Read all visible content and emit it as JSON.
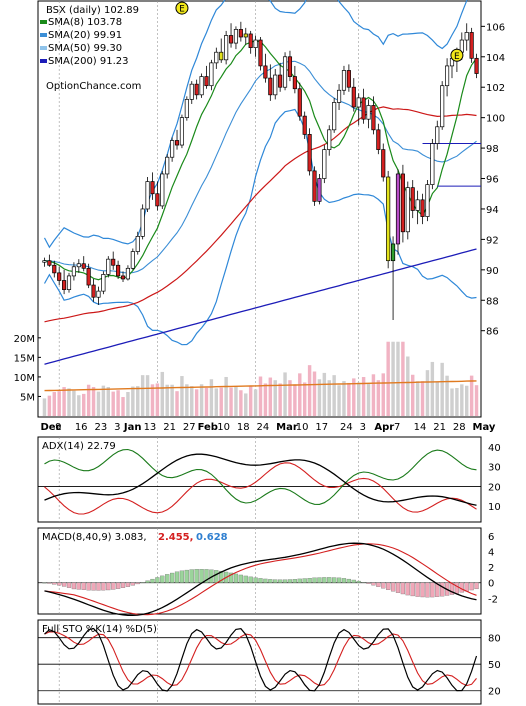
{
  "chart_data": {
    "type": "line",
    "symbol_label": "BSX (daily) 102.89",
    "legend": [
      {
        "label": "SMA(8) 103.78",
        "color": "#1a8a1a"
      },
      {
        "label": "SMA(20) 99.91",
        "color": "#3b8ed6"
      },
      {
        "label": "SMA(50) 99.30",
        "color": "#8fc3ea"
      },
      {
        "label": "SMA(200) 91.23",
        "color": "#1c1cb8"
      }
    ],
    "source": "OptionChance.com",
    "price_ticks": [
      "106",
      "104",
      "102",
      "100",
      "98",
      "96",
      "94",
      "92",
      "90",
      "88",
      "86"
    ],
    "price_range": [
      84.6,
      107.6
    ],
    "volume_ticks": [
      "20M",
      "15M",
      "10M",
      "5M"
    ],
    "volume_range": [
      0,
      22
    ],
    "x_labels": [
      "Dec",
      "9",
      "16",
      "23",
      "3",
      "Jan",
      "13",
      "21",
      "27",
      "Feb",
      "10",
      "18",
      "24",
      "Mar",
      "10",
      "17",
      "24",
      "3",
      "Apr",
      "7",
      "14",
      "21",
      "28",
      "May"
    ],
    "earnings_marker": "E",
    "colors": {
      "up": "#ffffff",
      "down": "#d42020",
      "sma8": "#1a8a1a",
      "sma20": "#3b8ed6",
      "sma50": "#8fc3ea",
      "sma200": "#1c1cb8",
      "red_avg": "#cc1818",
      "bollinger": "#2f88d8",
      "volume_up": "#cfcfcf",
      "volume_down": "#f1b3c3",
      "vol_avg": "#e07a20"
    },
    "adx": {
      "label": "ADX(14) 22.79",
      "ticks": [
        "40",
        "30",
        "20",
        "10"
      ],
      "range": [
        2,
        45
      ]
    },
    "macd": {
      "label": "MACD(8,40,9) 3.083,",
      "signal": "2.455,",
      "hist": "0.628",
      "ticks": [
        "6",
        "4",
        "2",
        "0",
        "-2"
      ],
      "range": [
        -4,
        7
      ]
    },
    "sto": {
      "label": "Full STO %K(14) %D(5)",
      "ticks": [
        "80",
        "50",
        "20"
      ],
      "range": [
        5,
        100
      ]
    },
    "volume_avg": 6.5,
    "candles": [
      [
        90.5,
        90.8,
        90.2,
        90.6
      ],
      [
        90.6,
        91.0,
        90.2,
        90.3
      ],
      [
        90.3,
        90.6,
        89.5,
        89.8
      ],
      [
        89.8,
        90.2,
        89.0,
        89.3
      ],
      [
        89.3,
        90.0,
        88.4,
        88.7
      ],
      [
        88.7,
        89.8,
        88.5,
        89.6
      ],
      [
        89.6,
        90.5,
        89.3,
        90.2
      ],
      [
        90.2,
        90.7,
        89.8,
        90.4
      ],
      [
        90.4,
        90.9,
        89.9,
        90.1
      ],
      [
        90.1,
        90.4,
        88.8,
        89.0
      ],
      [
        89.0,
        89.4,
        87.9,
        88.2
      ],
      [
        88.2,
        88.9,
        87.7,
        88.6
      ],
      [
        88.6,
        89.9,
        88.4,
        89.7
      ],
      [
        89.7,
        90.9,
        89.5,
        90.7
      ],
      [
        90.7,
        91.2,
        90.0,
        90.3
      ],
      [
        90.3,
        90.6,
        89.4,
        89.6
      ],
      [
        89.6,
        89.9,
        89.2,
        89.4
      ],
      [
        89.4,
        90.3,
        89.3,
        90.1
      ],
      [
        90.1,
        91.4,
        90.0,
        91.2
      ],
      [
        91.2,
        92.5,
        91.0,
        92.2
      ],
      [
        92.2,
        94.3,
        92.0,
        94.0
      ],
      [
        94.0,
        96.1,
        93.8,
        95.8
      ],
      [
        95.8,
        96.4,
        94.6,
        95.0
      ],
      [
        95.0,
        95.8,
        93.9,
        94.2
      ],
      [
        94.2,
        96.5,
        94.0,
        96.3
      ],
      [
        96.3,
        97.6,
        96.0,
        97.4
      ],
      [
        97.4,
        98.7,
        97.1,
        98.5
      ],
      [
        98.5,
        99.2,
        97.9,
        98.2
      ],
      [
        98.2,
        100.2,
        98.0,
        100.0
      ],
      [
        100.0,
        101.4,
        99.8,
        101.2
      ],
      [
        101.2,
        102.4,
        100.9,
        102.2
      ],
      [
        102.2,
        102.5,
        101.2,
        101.5
      ],
      [
        101.5,
        102.9,
        101.3,
        102.7
      ],
      [
        102.7,
        103.4,
        101.9,
        102.1
      ],
      [
        102.1,
        103.8,
        101.8,
        103.6
      ],
      [
        103.6,
        104.6,
        103.2,
        104.3
      ],
      [
        104.3,
        105.2,
        103.6,
        103.8
      ],
      [
        103.8,
        105.7,
        103.5,
        105.4
      ],
      [
        105.4,
        106.2,
        104.6,
        104.9
      ],
      [
        104.9,
        106.0,
        104.5,
        105.8
      ],
      [
        105.8,
        106.3,
        105.0,
        105.3
      ],
      [
        105.3,
        105.9,
        104.8,
        105.5
      ],
      [
        105.5,
        105.7,
        104.2,
        104.6
      ],
      [
        104.6,
        105.4,
        104.0,
        105.1
      ],
      [
        105.1,
        105.3,
        103.1,
        103.4
      ],
      [
        103.4,
        104.2,
        102.3,
        102.6
      ],
      [
        102.6,
        103.5,
        101.1,
        101.5
      ],
      [
        101.5,
        103.2,
        101.2,
        102.8
      ],
      [
        102.8,
        103.6,
        101.7,
        102.0
      ],
      [
        102.0,
        104.3,
        101.8,
        104.0
      ],
      [
        104.0,
        104.4,
        102.4,
        102.7
      ],
      [
        102.7,
        103.4,
        101.6,
        101.9
      ],
      [
        101.9,
        102.3,
        99.8,
        100.1
      ],
      [
        100.1,
        100.4,
        98.6,
        98.9
      ],
      [
        98.9,
        99.3,
        96.2,
        96.5
      ],
      [
        96.5,
        96.8,
        94.2,
        94.5
      ],
      [
        94.5,
        96.3,
        94.3,
        96.0
      ],
      [
        96.0,
        98.2,
        95.7,
        97.9
      ],
      [
        97.9,
        99.5,
        97.5,
        99.2
      ],
      [
        99.2,
        101.3,
        99.0,
        101.0
      ],
      [
        101.0,
        102.2,
        100.5,
        101.8
      ],
      [
        101.8,
        103.4,
        101.5,
        103.1
      ],
      [
        103.1,
        103.5,
        101.7,
        102.0
      ],
      [
        102.0,
        102.6,
        100.4,
        100.7
      ],
      [
        100.7,
        101.6,
        99.5,
        101.3
      ],
      [
        101.3,
        101.9,
        99.6,
        99.9
      ],
      [
        99.9,
        101.2,
        99.3,
        100.8
      ],
      [
        100.8,
        101.4,
        98.9,
        99.2
      ],
      [
        99.2,
        99.6,
        97.6,
        97.9
      ],
      [
        97.9,
        98.3,
        95.8,
        96.1
      ],
      [
        96.1,
        96.5,
        90.1,
        90.6
      ],
      [
        90.6,
        92.2,
        86.7,
        91.7
      ],
      [
        91.7,
        96.6,
        91.0,
        96.3
      ],
      [
        96.3,
        96.9,
        91.8,
        92.5
      ],
      [
        92.5,
        95.8,
        92.0,
        95.4
      ],
      [
        95.4,
        95.9,
        93.4,
        93.9
      ],
      [
        93.9,
        95.2,
        93.0,
        94.6
      ],
      [
        94.6,
        95.0,
        93.0,
        93.5
      ],
      [
        93.5,
        95.9,
        93.2,
        95.6
      ],
      [
        95.6,
        98.6,
        95.3,
        98.3
      ],
      [
        98.3,
        99.8,
        97.9,
        99.4
      ],
      [
        99.4,
        102.4,
        99.2,
        102.1
      ],
      [
        102.1,
        103.9,
        101.4,
        103.4
      ],
      [
        103.4,
        104.1,
        102.6,
        103.9
      ],
      [
        103.9,
        104.6,
        103.0,
        104.3
      ],
      [
        104.3,
        105.6,
        103.8,
        105.1
      ],
      [
        105.1,
        106.2,
        104.4,
        105.6
      ],
      [
        105.6,
        105.9,
        103.6,
        103.9
      ],
      [
        103.9,
        104.2,
        102.6,
        102.9
      ]
    ]
  }
}
